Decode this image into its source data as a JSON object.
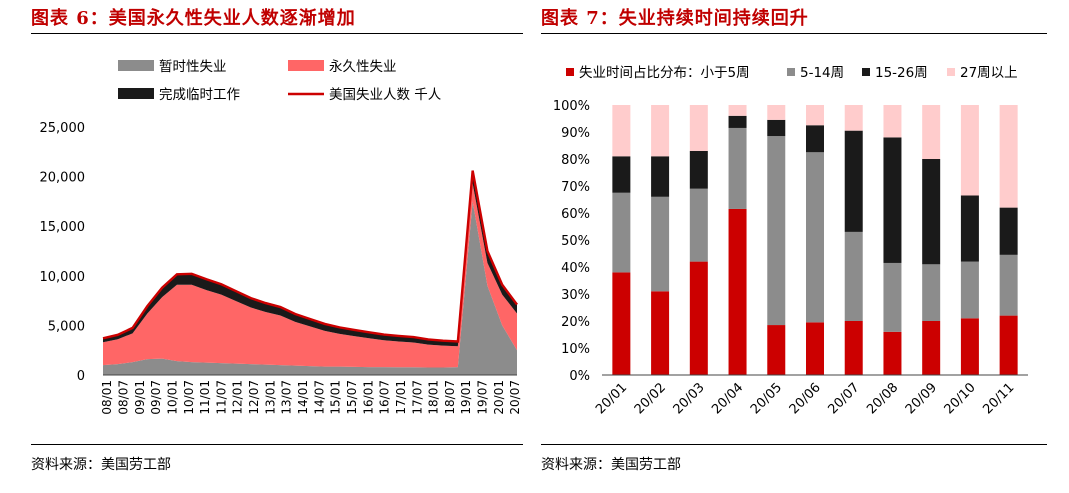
{
  "left": {
    "title": "图表 6：美国永久性失业人数逐渐增加",
    "source": "资料来源：美国劳工部"
  },
  "right": {
    "title": "图表 7：失业持续时间持续回升",
    "source": "资料来源：美国劳工部"
  },
  "colors": {
    "title_red": "#c00000",
    "temporary": "#8c8c8c",
    "permanent": "#ff6666",
    "completed_temp": "#1a1a1a",
    "total_line": "#cc0000",
    "share_lt5": "#cc0000",
    "share_5_14": "#8c8c8c",
    "share_15_26": "#1a1a1a",
    "share_27plus": "#ffcccc"
  },
  "chart_data": [
    {
      "type": "area",
      "stacked": true,
      "title": "",
      "xlabel": "",
      "ylabel": "",
      "unit": "千人",
      "ylim": [
        0,
        25000
      ],
      "yticks": [
        0,
        5000,
        10000,
        15000,
        20000,
        25000
      ],
      "ytick_labels": [
        "0",
        "5,000",
        "10,000",
        "15,000",
        "20,000",
        "25,000"
      ],
      "xtick_labels": [
        "08/01",
        "08/07",
        "09/01",
        "09/07",
        "10/01",
        "10/07",
        "11/01",
        "11/07",
        "12/01",
        "12/07",
        "13/01",
        "13/07",
        "14/01",
        "14/07",
        "15/01",
        "15/07",
        "16/01",
        "16/07",
        "17/01",
        "17/07",
        "18/01",
        "18/07",
        "19/01",
        "19/07",
        "20/01",
        "20/07"
      ],
      "x_period": "semiannual, Jan 2008 – Sep 2020",
      "legend_position": "top",
      "series": [
        {
          "name": "暂时性失业",
          "kind": "area",
          "values": [
            1000,
            1100,
            1300,
            1600,
            1650,
            1400,
            1300,
            1250,
            1200,
            1150,
            1100,
            1050,
            1000,
            950,
            900,
            850,
            850,
            820,
            800,
            800,
            780,
            780,
            760,
            760,
            800,
            17500,
            9000,
            5000,
            2500
          ]
        },
        {
          "name": "永久性失业",
          "kind": "area",
          "values": [
            2300,
            2500,
            2900,
            4600,
            6200,
            7700,
            7800,
            7300,
            6900,
            6300,
            5700,
            5300,
            5000,
            4400,
            4000,
            3600,
            3300,
            3100,
            2900,
            2700,
            2600,
            2500,
            2300,
            2200,
            2100,
            1800,
            2300,
            3100,
            3700
          ]
        },
        {
          "name": "完成临时工作",
          "kind": "area",
          "values": [
            400,
            450,
            550,
            750,
            950,
            1050,
            1100,
            1100,
            1050,
            1000,
            950,
            900,
            850,
            800,
            750,
            700,
            650,
            620,
            600,
            580,
            560,
            540,
            520,
            500,
            480,
            1300,
            1200,
            1000,
            900
          ]
        },
        {
          "name": "美国失业人数 千人",
          "kind": "line",
          "values": [
            3700,
            4050,
            4750,
            6950,
            8800,
            10150,
            10200,
            9650,
            9150,
            8450,
            7750,
            7250,
            6850,
            6150,
            5650,
            5150,
            4800,
            4540,
            4300,
            4080,
            3940,
            3820,
            3580,
            3460,
            3380,
            20600,
            12500,
            9100,
            7100
          ]
        }
      ]
    },
    {
      "type": "bar",
      "stacked": true,
      "percent": true,
      "title": "",
      "xlabel": "",
      "ylabel": "",
      "ylim": [
        0,
        100
      ],
      "yticks": [
        0,
        10,
        20,
        30,
        40,
        50,
        60,
        70,
        80,
        90,
        100
      ],
      "ytick_labels": [
        "0%",
        "10%",
        "20%",
        "30%",
        "40%",
        "50%",
        "60%",
        "70%",
        "80%",
        "90%",
        "100%"
      ],
      "categories": [
        "20/01",
        "20/02",
        "20/03",
        "20/04",
        "20/05",
        "20/06",
        "20/07",
        "20/08",
        "20/09",
        "20/10",
        "20/11"
      ],
      "legend_position": "top",
      "series": [
        {
          "name": "失业时间占比分布：小于5周",
          "values": [
            38,
            31,
            42,
            61.5,
            18.5,
            19.5,
            20,
            16,
            20,
            21,
            22
          ]
        },
        {
          "name": "5-14周",
          "values": [
            29.5,
            35,
            27,
            30,
            70,
            63,
            33,
            25.5,
            21,
            21,
            22.5
          ]
        },
        {
          "name": "15-26周",
          "values": [
            13.5,
            15,
            14,
            4.5,
            6,
            10,
            37.5,
            46.5,
            39,
            24.5,
            17.5
          ]
        },
        {
          "name": "27周以上",
          "values": [
            19,
            19,
            17,
            4,
            5.5,
            7.5,
            9.5,
            12,
            20,
            33.5,
            38
          ]
        }
      ]
    }
  ]
}
